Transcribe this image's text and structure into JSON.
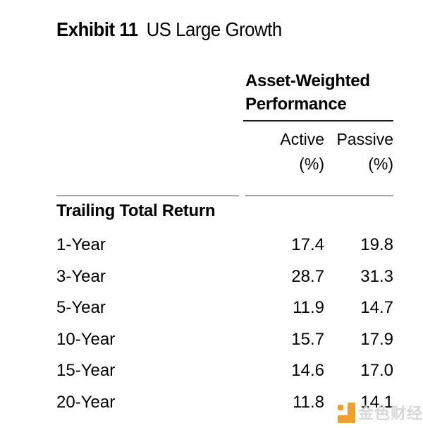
{
  "title": {
    "exhibit_label": "Exhibit 11",
    "subtitle": "US Large Growth"
  },
  "table": {
    "group_header": {
      "line1": "Asset-Weighted",
      "line2": "Performance"
    },
    "columns": [
      {
        "name": "Active",
        "unit": "(%)"
      },
      {
        "name": "Passive",
        "unit": "(%)"
      }
    ],
    "section_header": "Trailing Total Return",
    "rows": [
      {
        "label": "1-Year",
        "active": "17.4",
        "passive": "19.8"
      },
      {
        "label": "3-Year",
        "active": "28.7",
        "passive": "31.3"
      },
      {
        "label": "5-Year",
        "active": "11.9",
        "passive": "14.7"
      },
      {
        "label": "10-Year",
        "active": "15.7",
        "passive": "17.9"
      },
      {
        "label": "15-Year",
        "active": "14.6",
        "passive": "17.0"
      },
      {
        "label": "20-Year",
        "active": "11.8",
        "passive": "14.1"
      }
    ]
  },
  "chart_data": {
    "type": "table",
    "title": "Exhibit 11 US Large Growth",
    "column_group": "Asset-Weighted Performance",
    "columns": [
      "",
      "Active (%)",
      "Passive (%)"
    ],
    "section": "Trailing Total Return",
    "rows": [
      [
        "1-Year",
        17.4,
        19.8
      ],
      [
        "3-Year",
        28.7,
        31.3
      ],
      [
        "5-Year",
        11.9,
        14.7
      ],
      [
        "10-Year",
        15.7,
        17.9
      ],
      [
        "15-Year",
        14.6,
        17.0
      ],
      [
        "20-Year",
        11.8,
        14.1
      ]
    ]
  },
  "watermark": {
    "text": "金色财经",
    "logo_color": "#f0a12d",
    "text_color": "#d6d6d6"
  },
  "colors": {
    "text": "#000000",
    "header_rule": "#1a1a1a",
    "body_rule": "#a6a6a6",
    "background": "#ffffff"
  }
}
